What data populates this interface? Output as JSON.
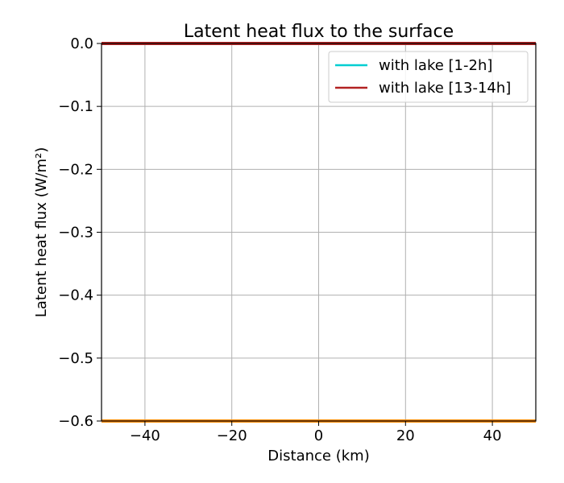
{
  "chart_data": {
    "type": "line",
    "title": "Latent heat flux to the surface",
    "xlabel": "Distance (km)",
    "ylabel": "Latent heat flux (W/m²)",
    "xlim": [
      -50,
      50
    ],
    "ylim": [
      -0.6,
      0.0
    ],
    "x_ticks": [
      -40,
      -20,
      0,
      20,
      40
    ],
    "x_tick_labels": [
      "−40",
      "−20",
      "0",
      "20",
      "40"
    ],
    "y_ticks": [
      0.0,
      -0.1,
      -0.2,
      -0.3,
      -0.4,
      -0.5,
      -0.6
    ],
    "y_tick_labels": [
      "0.0",
      "−0.1",
      "−0.2",
      "−0.3",
      "−0.4",
      "−0.5",
      "−0.6"
    ],
    "grid": true,
    "legend_position": "top-right",
    "series": [
      {
        "name": "with lake [1-2h]",
        "color": "#00ced1",
        "x": [
          -50,
          50
        ],
        "y": [
          0.0,
          0.0
        ],
        "in_legend": true
      },
      {
        "name": "with lake [13-14h]",
        "color": "#b22222",
        "x": [
          -50,
          50
        ],
        "y": [
          0.0,
          0.0
        ],
        "in_legend": true
      },
      {
        "color": "#ff8c00",
        "x": [
          -50,
          50
        ],
        "y": [
          -0.6,
          -0.6
        ],
        "in_legend": false
      }
    ]
  }
}
